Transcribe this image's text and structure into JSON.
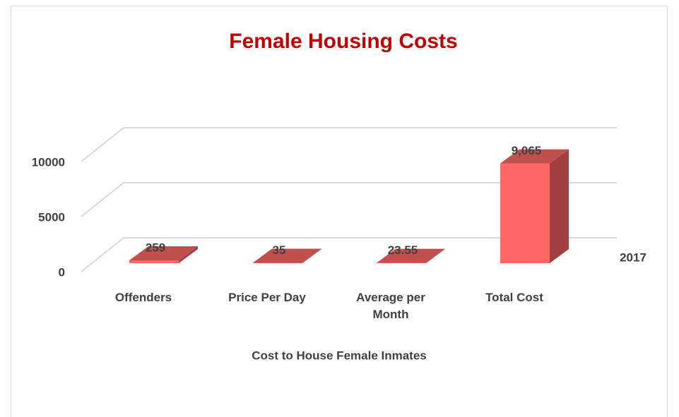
{
  "chart_data": {
    "type": "bar3d",
    "title": "Female Housing Costs",
    "categories": [
      "Offenders",
      "Price Per Day",
      "Average per Month",
      "Total Cost"
    ],
    "series": [
      {
        "name": "2017",
        "color": "#ff6666",
        "values": [
          259,
          35,
          23.55,
          9065
        ],
        "value_labels": [
          "259",
          "35",
          "23.55",
          "9,065"
        ]
      }
    ],
    "x_label": "Cost to House Female Inmates",
    "ylim": [
      0,
      10000
    ],
    "yticks": [
      0,
      5000,
      10000
    ],
    "grid": true
  }
}
